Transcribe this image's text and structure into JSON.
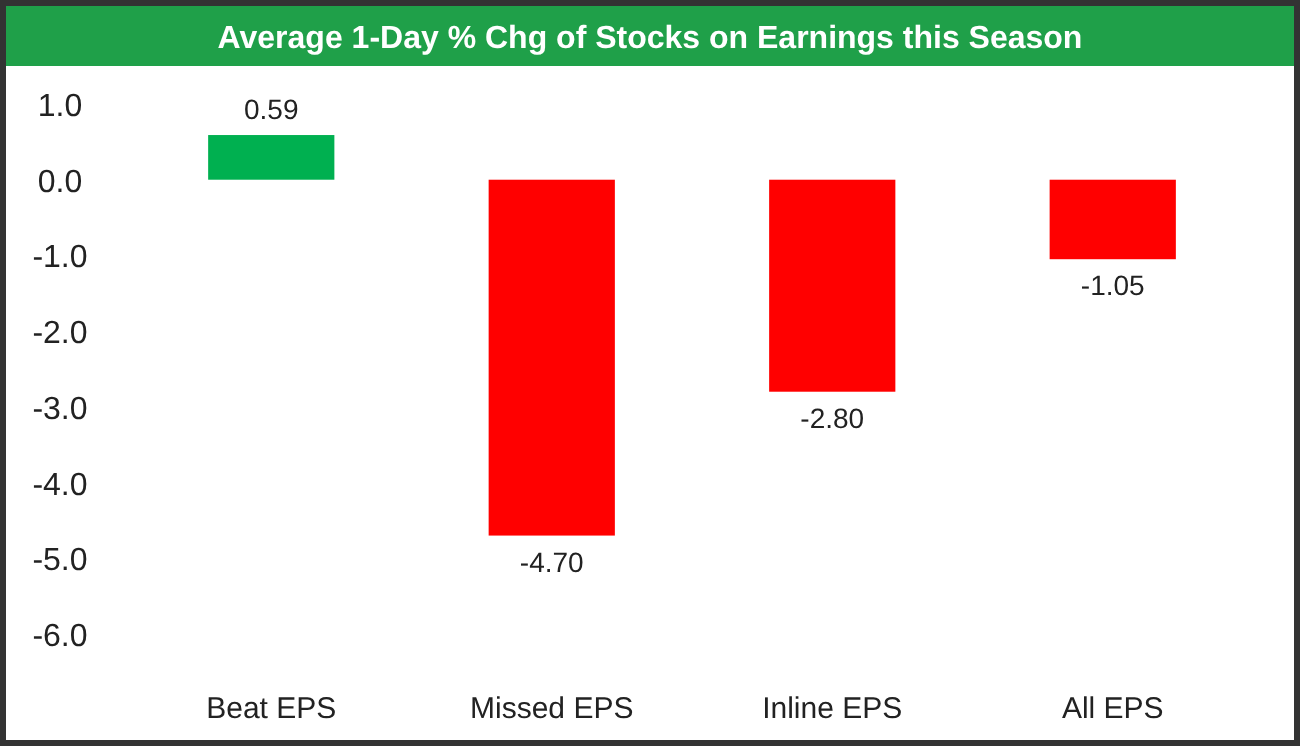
{
  "chart_data": {
    "type": "bar",
    "title": "Average 1-Day % Chg of Stocks on Earnings this Season",
    "categories": [
      "Beat EPS",
      "Missed EPS",
      "Inline EPS",
      "All EPS"
    ],
    "values": [
      0.59,
      -4.7,
      -2.8,
      -1.05
    ],
    "colors": [
      "#00b050",
      "#ff0000",
      "#ff0000",
      "#ff0000"
    ],
    "value_labels": [
      "0.59",
      "-4.70",
      "-2.80",
      "-1.05"
    ],
    "ylim": [
      -6,
      1
    ],
    "yticks": [
      {
        "value": 1,
        "label": "1.0"
      },
      {
        "value": 0,
        "label": "0.0"
      },
      {
        "value": -1,
        "label": "-1.0"
      },
      {
        "value": -2,
        "label": "-2.0"
      },
      {
        "value": -3,
        "label": "-3.0"
      },
      {
        "value": -4,
        "label": "-4.0"
      },
      {
        "value": -5,
        "label": "-5.0"
      },
      {
        "value": -6,
        "label": "-6.0"
      }
    ]
  }
}
